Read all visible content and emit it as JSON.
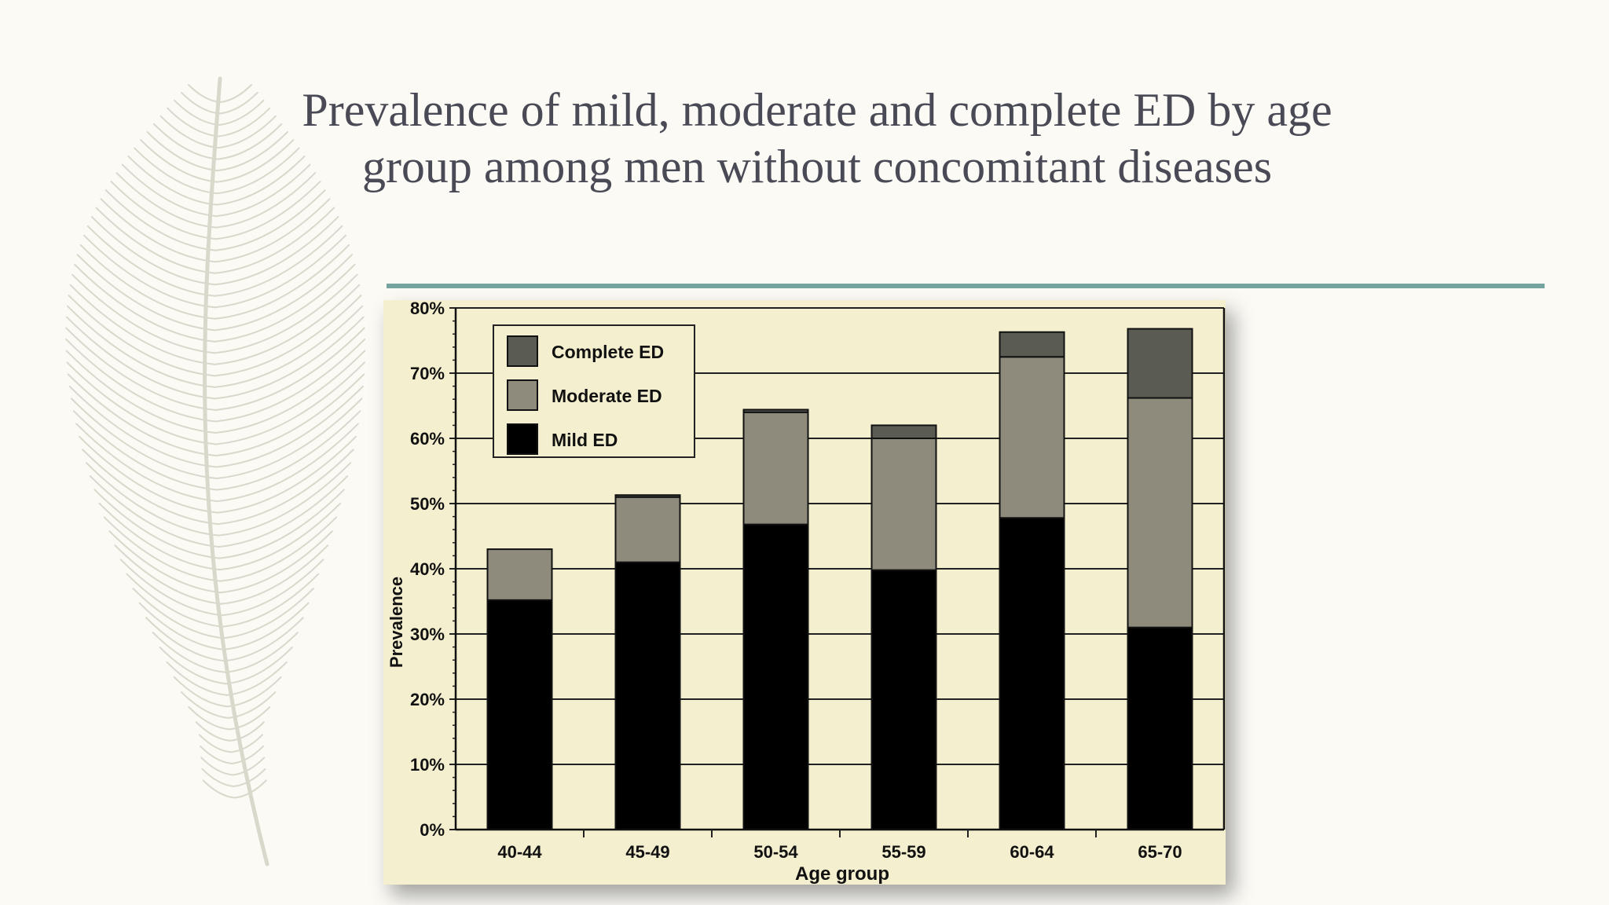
{
  "slide": {
    "title_line1": "Prevalence of mild, moderate and complete ED by age",
    "title_line2": "group among men without concomitant diseases",
    "accent_color": "#75a3a0",
    "decoration": "feather-illustration"
  },
  "chart_data": {
    "type": "bar",
    "stacked": true,
    "categories": [
      "40-44",
      "45-49",
      "50-54",
      "55-59",
      "60-64",
      "65-70"
    ],
    "series": [
      {
        "name": "Mild ED",
        "values": [
          35.2,
          41.0,
          46.8,
          39.8,
          47.8,
          31.0
        ],
        "color": "#000000"
      },
      {
        "name": "Moderate ED",
        "values": [
          7.8,
          10.0,
          17.2,
          20.2,
          24.7,
          35.2
        ],
        "color": "#8e8b7c"
      },
      {
        "name": "Complete ED",
        "values": [
          0,
          0.3,
          0.4,
          2.0,
          3.8,
          10.6
        ],
        "color": "#5a5c53"
      }
    ],
    "legend_order": [
      "Complete ED",
      "Moderate ED",
      "Mild ED"
    ],
    "legend_position": "top-left",
    "xlabel": "Age group",
    "ylabel": "Prevalence",
    "ylim": [
      0,
      80
    ],
    "yticks": [
      "0%",
      "10%",
      "20%",
      "30%",
      "40%",
      "50%",
      "60%",
      "70%",
      "80%"
    ],
    "grid": true,
    "background": "#f4efcf"
  }
}
